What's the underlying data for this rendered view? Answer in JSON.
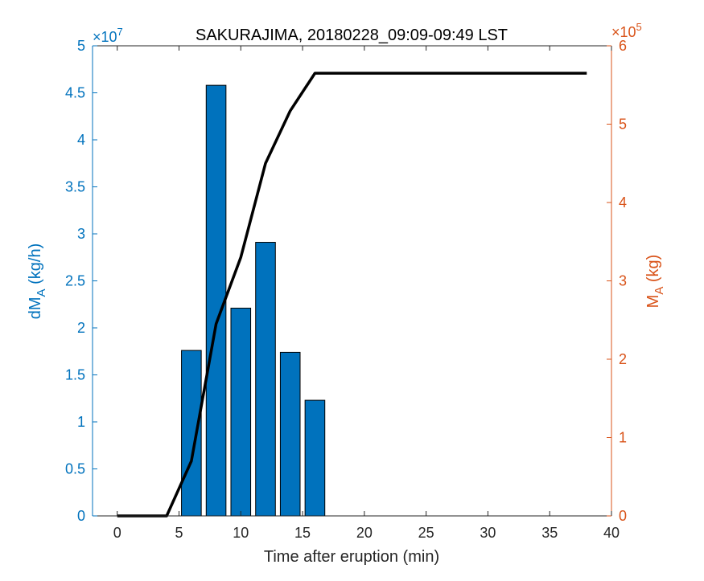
{
  "chart_data": {
    "type": "bar",
    "title": "SAKURAJIMA, 20180228_09:09-09:49 LST",
    "xlabel": "Time after eruption (min)",
    "xlim": [
      -2,
      40
    ],
    "xticks": [
      0,
      5,
      10,
      15,
      20,
      25,
      30,
      35,
      40
    ],
    "left_axis": {
      "label_main": "dM",
      "label_sub": "A",
      "label_unit": " (kg/h)",
      "exponent_base": "×10",
      "exponent_power": "7",
      "ylim": [
        0,
        5
      ],
      "ticks": [
        0,
        0.5,
        1,
        1.5,
        2,
        2.5,
        3,
        3.5,
        4,
        4.5,
        5
      ],
      "color": "#0072BD"
    },
    "right_axis": {
      "label_main": "M",
      "label_sub": "A",
      "label_unit": " (kg)",
      "exponent_base": "×10",
      "exponent_power": "5",
      "ylim": [
        0,
        6
      ],
      "ticks": [
        0,
        1,
        2,
        3,
        4,
        5,
        6
      ],
      "color": "#D95319"
    },
    "bars": {
      "x": [
        6,
        8,
        10,
        12,
        14,
        16
      ],
      "values": [
        1.76,
        4.58,
        2.21,
        2.91,
        1.74,
        1.23
      ],
      "width": 1.6,
      "color": "#0072BD"
    },
    "line": {
      "x": [
        0,
        4,
        6,
        8,
        10,
        12,
        14,
        16,
        38
      ],
      "values": [
        0,
        0,
        0.7,
        2.45,
        3.3,
        4.5,
        5.17,
        5.65,
        5.65
      ],
      "color": "#000000"
    },
    "grid": false,
    "legend": "none"
  }
}
